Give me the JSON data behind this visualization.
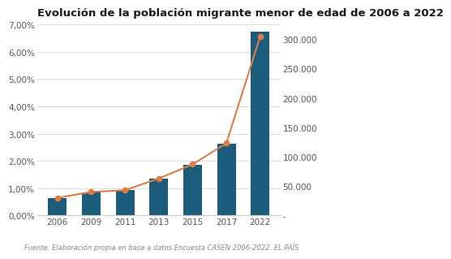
{
  "title": "Evolución de la población migrante menor de edad de 2006 a 2022",
  "years": [
    2006,
    2009,
    2011,
    2013,
    2015,
    2017,
    2022
  ],
  "x_positions": [
    0,
    1,
    2,
    3,
    4,
    5,
    6
  ],
  "pct_values": [
    0.0065,
    0.0085,
    0.0092,
    0.0135,
    0.0185,
    0.0262,
    0.0675
  ],
  "abs_values": [
    30000,
    40000,
    43000,
    63000,
    87000,
    123000,
    305000
  ],
  "bar_color": "#1b5c7a",
  "line_color": "#e07b45",
  "marker_color": "#e07b45",
  "title_fontsize": 9.5,
  "tick_fontsize": 7.5,
  "source_text": "Fuente: Elaboración propia en base a datos Encuesta CASEN 2006-2022. EL PAÍS",
  "source_fontsize": 6.0,
  "ylim_left": [
    0,
    0.07
  ],
  "ylim_right": [
    0,
    325000
  ],
  "yticks_left": [
    0.0,
    0.01,
    0.02,
    0.03,
    0.04,
    0.05,
    0.06,
    0.07
  ],
  "ytick_labels_left": [
    "0,00%",
    "1,00%",
    "2,00%",
    "3,00%",
    "4,00%",
    "5,00%",
    "6,00%",
    "7,00%"
  ],
  "yticks_right": [
    0,
    50000,
    100000,
    150000,
    200000,
    250000,
    300000
  ],
  "ytick_labels_right": [
    "-",
    "50.000",
    "100.000",
    "150.000",
    "200.000",
    "250.000",
    "300.000"
  ],
  "background_color": "#ffffff"
}
